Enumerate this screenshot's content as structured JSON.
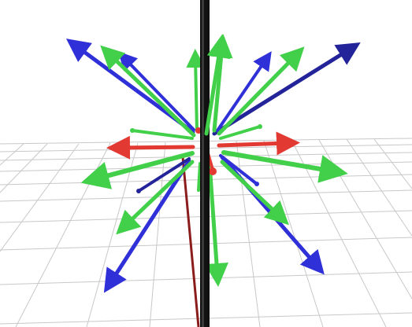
{
  "scene": {
    "background_color": "#ffffff",
    "grid_color": "#c8c8c8",
    "colors": {
      "x_axis": "#e23a33",
      "y_axis": "#42d04a",
      "z_axis": "#3030d8",
      "z_axis_dark": "#24249a",
      "vertical_pole": "#111111",
      "pole_shadow": "#8a1c1c"
    }
  }
}
